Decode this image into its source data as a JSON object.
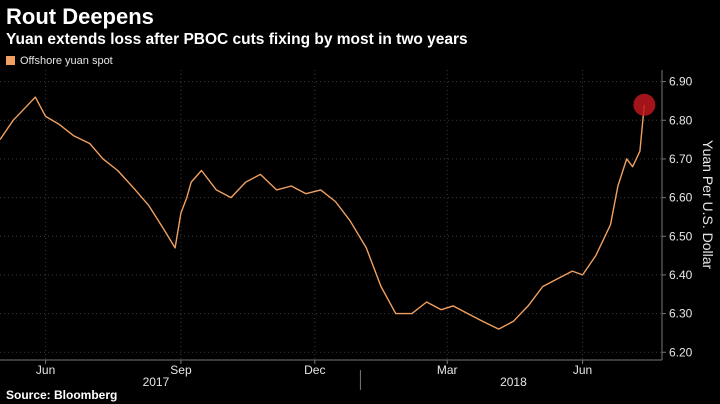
{
  "colors": {
    "background": "#000000",
    "series": "#f0a060",
    "highlight_fill": "#c0181f",
    "grid": "#3a3a3a",
    "axis": "#777777"
  },
  "chart_data": {
    "type": "line",
    "title": "Rout Deepens",
    "subtitle": "Yuan extends loss after PBOC cuts fixing by most in two years",
    "xlabel": "",
    "ylabel": "Yuan Per U.S. Dollar",
    "ylim": [
      6.18,
      6.93
    ],
    "yticks": [
      6.2,
      6.3,
      6.4,
      6.5,
      6.6,
      6.7,
      6.8,
      6.9
    ],
    "ytick_labels": [
      "6.20",
      "6.30",
      "6.40",
      "6.50",
      "6.60",
      "6.70",
      "6.80",
      "6.90"
    ],
    "xlim": [
      "2017-05-01",
      "2018-07-25"
    ],
    "xticks": [
      {
        "date": "2017-06-01",
        "label": "Jun"
      },
      {
        "date": "2017-09-01",
        "label": "Sep"
      },
      {
        "date": "2017-12-01",
        "label": "Dec"
      },
      {
        "date": "2018-03-01",
        "label": "Mar"
      },
      {
        "date": "2018-06-01",
        "label": "Jun"
      }
    ],
    "year_labels": [
      {
        "date": "2017-08-15",
        "label": "2017"
      },
      {
        "date": "2018-04-15",
        "label": "2018"
      }
    ],
    "year_divider": "2018-01-01",
    "grid": true,
    "legend_position": "top-left",
    "highlight_point": {
      "x": "2018-07-13",
      "y": 6.84
    },
    "series": [
      {
        "name": "Offshore yuan spot",
        "x": [
          "2017-05-01",
          "2017-05-10",
          "2017-05-20",
          "2017-05-25",
          "2017-06-01",
          "2017-06-10",
          "2017-06-20",
          "2017-07-01",
          "2017-07-10",
          "2017-07-20",
          "2017-08-01",
          "2017-08-10",
          "2017-08-20",
          "2017-08-28",
          "2017-09-01",
          "2017-09-05",
          "2017-09-08",
          "2017-09-15",
          "2017-09-25",
          "2017-10-05",
          "2017-10-15",
          "2017-10-25",
          "2017-11-05",
          "2017-11-15",
          "2017-11-25",
          "2017-12-05",
          "2017-12-15",
          "2017-12-25",
          "2018-01-05",
          "2018-01-15",
          "2018-01-25",
          "2018-02-05",
          "2018-02-15",
          "2018-02-25",
          "2018-03-05",
          "2018-03-15",
          "2018-03-25",
          "2018-04-05",
          "2018-04-15",
          "2018-04-25",
          "2018-05-05",
          "2018-05-15",
          "2018-05-25",
          "2018-06-01",
          "2018-06-10",
          "2018-06-20",
          "2018-06-25",
          "2018-07-01",
          "2018-07-05",
          "2018-07-10",
          "2018-07-13"
        ],
        "values": [
          6.75,
          6.8,
          6.84,
          6.86,
          6.81,
          6.79,
          6.76,
          6.74,
          6.7,
          6.67,
          6.62,
          6.58,
          6.52,
          6.47,
          6.56,
          6.6,
          6.64,
          6.67,
          6.62,
          6.6,
          6.64,
          6.66,
          6.62,
          6.63,
          6.61,
          6.62,
          6.59,
          6.54,
          6.47,
          6.37,
          6.3,
          6.3,
          6.33,
          6.31,
          6.32,
          6.3,
          6.28,
          6.26,
          6.28,
          6.32,
          6.37,
          6.39,
          6.41,
          6.4,
          6.45,
          6.53,
          6.63,
          6.7,
          6.68,
          6.72,
          6.84
        ]
      }
    ]
  },
  "source": "Source: Bloomberg"
}
